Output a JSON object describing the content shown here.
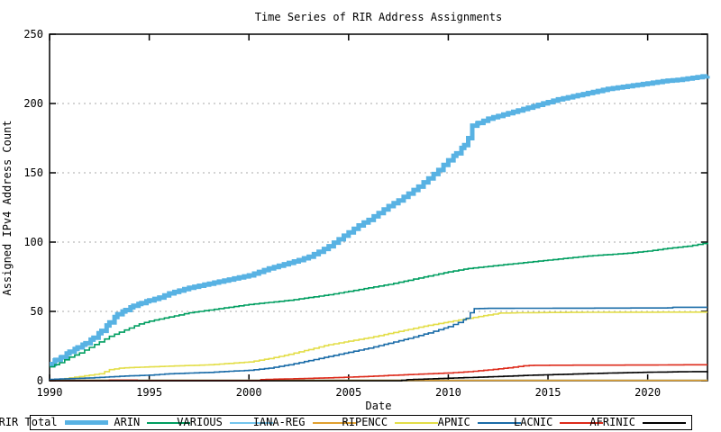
{
  "chart_data": {
    "type": "line",
    "title": "Time Series of RIR Address Assignments",
    "xlabel": "Date",
    "ylabel": "Assigned IPv4 Address Count",
    "x_range": [
      1990,
      2023
    ],
    "y_range": [
      0,
      250
    ],
    "x_ticks": [
      "1990",
      "1995",
      "2000",
      "2005",
      "2010",
      "2015",
      "2020"
    ],
    "y_ticks": [
      "0",
      "50",
      "100",
      "150",
      "200",
      "250"
    ],
    "gridlines_y": [
      50,
      100,
      150,
      200
    ],
    "grid_style": "dashed-gray-horizontal",
    "legend_position": "bottom",
    "border_color": "#000000",
    "background_color": "#ffffff",
    "series": [
      {
        "name": "RIR Total",
        "color": "#58b2e3",
        "width": 5,
        "points": [
          [
            1990,
            12
          ],
          [
            1990.3,
            15
          ],
          [
            1990.6,
            17
          ],
          [
            1991,
            21
          ],
          [
            1991.4,
            24
          ],
          [
            1991.8,
            27
          ],
          [
            1992.2,
            31
          ],
          [
            1992.6,
            36
          ],
          [
            1993,
            42
          ],
          [
            1993.4,
            48
          ],
          [
            1993.8,
            51
          ],
          [
            1994.2,
            54
          ],
          [
            1994.6,
            56
          ],
          [
            1995,
            58
          ],
          [
            1995.5,
            60
          ],
          [
            1996,
            63
          ],
          [
            1996.5,
            65
          ],
          [
            1997,
            67
          ],
          [
            1997.5,
            68.5
          ],
          [
            1998,
            70
          ],
          [
            1998.5,
            71.5
          ],
          [
            1999,
            73
          ],
          [
            1999.5,
            74.5
          ],
          [
            2000,
            76
          ],
          [
            2000.5,
            78.5
          ],
          [
            2001,
            81
          ],
          [
            2001.5,
            83
          ],
          [
            2002,
            85
          ],
          [
            2002.5,
            87
          ],
          [
            2003,
            89.5
          ],
          [
            2003.5,
            93
          ],
          [
            2004,
            97
          ],
          [
            2004.5,
            102
          ],
          [
            2005,
            107
          ],
          [
            2005.5,
            112
          ],
          [
            2006,
            116
          ],
          [
            2006.5,
            121
          ],
          [
            2007,
            126
          ],
          [
            2007.5,
            130
          ],
          [
            2008,
            135
          ],
          [
            2008.5,
            140
          ],
          [
            2009,
            146
          ],
          [
            2009.5,
            152
          ],
          [
            2010,
            159
          ],
          [
            2010.4,
            164
          ],
          [
            2010.8,
            170
          ],
          [
            2011.0,
            175
          ],
          [
            2011.2,
            184
          ],
          [
            2011.5,
            186
          ],
          [
            2012,
            189
          ],
          [
            2012.5,
            191
          ],
          [
            2013,
            193
          ],
          [
            2013.5,
            195
          ],
          [
            2014,
            197
          ],
          [
            2014.5,
            199
          ],
          [
            2015,
            201
          ],
          [
            2015.5,
            203
          ],
          [
            2016,
            204.5
          ],
          [
            2016.5,
            206
          ],
          [
            2017,
            207.5
          ],
          [
            2017.5,
            209
          ],
          [
            2018,
            210.5
          ],
          [
            2018.5,
            211.5
          ],
          [
            2019,
            212.5
          ],
          [
            2019.5,
            213.5
          ],
          [
            2020,
            214.5
          ],
          [
            2020.5,
            215.5
          ],
          [
            2021,
            216.5
          ],
          [
            2021.5,
            217
          ],
          [
            2022,
            218
          ],
          [
            2022.5,
            219
          ],
          [
            2023,
            220
          ]
        ]
      },
      {
        "name": "ARIN",
        "color": "#009e60",
        "width": 1.6,
        "points": [
          [
            1990,
            10
          ],
          [
            1990.5,
            13
          ],
          [
            1991,
            17
          ],
          [
            1991.5,
            20
          ],
          [
            1992,
            24
          ],
          [
            1992.5,
            28
          ],
          [
            1993,
            32
          ],
          [
            1993.5,
            35
          ],
          [
            1994,
            38
          ],
          [
            1994.5,
            41
          ],
          [
            1995,
            43
          ],
          [
            1995.5,
            44.5
          ],
          [
            1996,
            46
          ],
          [
            1996.5,
            47.5
          ],
          [
            1997,
            49
          ],
          [
            1997.5,
            50
          ],
          [
            1998,
            51
          ],
          [
            1998.5,
            52
          ],
          [
            1999,
            53
          ],
          [
            1999.5,
            54
          ],
          [
            2000,
            55
          ],
          [
            2001,
            56.5
          ],
          [
            2002,
            58
          ],
          [
            2003,
            60
          ],
          [
            2004,
            62
          ],
          [
            2005,
            64.5
          ],
          [
            2006,
            67
          ],
          [
            2007,
            69.5
          ],
          [
            2008,
            72.5
          ],
          [
            2009,
            75.5
          ],
          [
            2010,
            78.5
          ],
          [
            2011,
            81
          ],
          [
            2012,
            82.5
          ],
          [
            2013,
            84
          ],
          [
            2014,
            85.5
          ],
          [
            2015,
            87
          ],
          [
            2016,
            88.5
          ],
          [
            2017,
            90
          ],
          [
            2018,
            91
          ],
          [
            2019,
            92
          ],
          [
            2020,
            93.5
          ],
          [
            2021,
            95.5
          ],
          [
            2022,
            97
          ],
          [
            2023,
            99.5
          ]
        ]
      },
      {
        "name": "VARIOUS",
        "color": "#74c6ee",
        "width": 1.6,
        "points": [
          [
            1990,
            0.4
          ],
          [
            2023,
            0.4
          ]
        ]
      },
      {
        "name": "IANA-REG",
        "color": "#e0a030",
        "width": 1.6,
        "points": [
          [
            1990,
            0.25
          ],
          [
            2023,
            0.25
          ]
        ]
      },
      {
        "name": "RIPENCC",
        "color": "#e3de49",
        "width": 1.6,
        "points": [
          [
            1990,
            0.5
          ],
          [
            1990.5,
            1
          ],
          [
            1991,
            2
          ],
          [
            1991.5,
            3
          ],
          [
            1992,
            4
          ],
          [
            1992.5,
            5
          ],
          [
            1993,
            8
          ],
          [
            1993.5,
            9
          ],
          [
            1994,
            9.5
          ],
          [
            1995,
            10
          ],
          [
            1996,
            10.5
          ],
          [
            1997,
            11
          ],
          [
            1998,
            11.5
          ],
          [
            1999,
            12.5
          ],
          [
            2000,
            13.5
          ],
          [
            2001,
            16
          ],
          [
            2002,
            19
          ],
          [
            2003,
            22.5
          ],
          [
            2004,
            26
          ],
          [
            2005,
            28.5
          ],
          [
            2006,
            31
          ],
          [
            2007,
            34
          ],
          [
            2008,
            37
          ],
          [
            2009,
            40
          ],
          [
            2010,
            42.5
          ],
          [
            2011,
            45
          ],
          [
            2012,
            47.5
          ],
          [
            2012.6,
            48.8
          ],
          [
            2013.5,
            49
          ],
          [
            2015,
            49.2
          ],
          [
            2018,
            49.4
          ],
          [
            2023,
            49.5
          ]
        ]
      },
      {
        "name": "APNIC",
        "color": "#1a6ca8",
        "width": 1.6,
        "points": [
          [
            1990,
            1
          ],
          [
            1991,
            1.5
          ],
          [
            1992,
            2
          ],
          [
            1993,
            2.8
          ],
          [
            1994,
            3.5
          ],
          [
            1995,
            4
          ],
          [
            1996,
            5
          ],
          [
            1997,
            5.5
          ],
          [
            1998,
            6
          ],
          [
            1999,
            6.8
          ],
          [
            2000,
            7.5
          ],
          [
            2001,
            9
          ],
          [
            2002,
            11.5
          ],
          [
            2003,
            14.5
          ],
          [
            2004,
            17.5
          ],
          [
            2005,
            20.5
          ],
          [
            2006,
            23.5
          ],
          [
            2007,
            27
          ],
          [
            2008,
            30.5
          ],
          [
            2009,
            34.5
          ],
          [
            2010,
            39
          ],
          [
            2010.5,
            42
          ],
          [
            2010.9,
            45
          ],
          [
            2011.1,
            49
          ],
          [
            2011.3,
            52
          ],
          [
            2012,
            52.2
          ],
          [
            2015,
            52.3
          ],
          [
            2021,
            52.5
          ],
          [
            2021.3,
            53
          ],
          [
            2023,
            53
          ]
        ]
      },
      {
        "name": "LACNIC",
        "color": "#dd2a1a",
        "width": 1.6,
        "points": [
          [
            1990,
            0
          ],
          [
            1992.9,
            0
          ],
          [
            1993,
            0.4
          ],
          [
            1994.3,
            0.4
          ],
          [
            1994.4,
            0.15
          ],
          [
            2000.4,
            0.15
          ],
          [
            2000.6,
            0.8
          ],
          [
            2001,
            1
          ],
          [
            2002,
            1.3
          ],
          [
            2003,
            1.7
          ],
          [
            2004,
            2.1
          ],
          [
            2005,
            2.6
          ],
          [
            2006,
            3.1
          ],
          [
            2007,
            3.8
          ],
          [
            2008,
            4.4
          ],
          [
            2009,
            5
          ],
          [
            2010,
            5.6
          ],
          [
            2011,
            6.5
          ],
          [
            2012,
            7.8
          ],
          [
            2013,
            9.3
          ],
          [
            2013.8,
            10.8
          ],
          [
            2014.3,
            11.1
          ],
          [
            2016,
            11.2
          ],
          [
            2020,
            11.3
          ],
          [
            2022,
            11.5
          ],
          [
            2023,
            11.5
          ]
        ]
      },
      {
        "name": "AFRINIC",
        "color": "#000000",
        "width": 1.6,
        "points": [
          [
            1990,
            0
          ],
          [
            2007.4,
            0
          ],
          [
            2008,
            0.8
          ],
          [
            2009,
            1.3
          ],
          [
            2010,
            1.8
          ],
          [
            2011,
            2.3
          ],
          [
            2012,
            2.8
          ],
          [
            2013,
            3.3
          ],
          [
            2014,
            3.9
          ],
          [
            2015,
            4.3
          ],
          [
            2016,
            4.7
          ],
          [
            2017,
            5.1
          ],
          [
            2018,
            5.5
          ],
          [
            2019,
            5.8
          ],
          [
            2020,
            6.1
          ],
          [
            2021,
            6.3
          ],
          [
            2022,
            6.5
          ],
          [
            2023,
            6.6
          ]
        ]
      }
    ]
  }
}
